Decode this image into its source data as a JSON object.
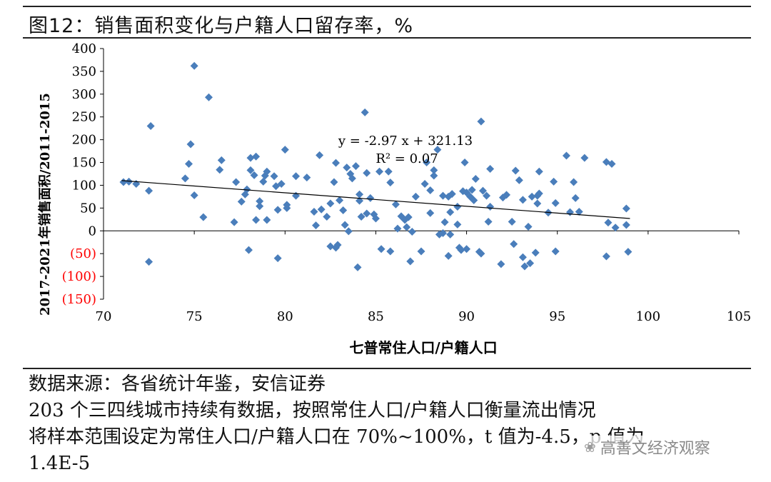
{
  "header": {
    "title": "图12：销售面积变化与户籍人口留存率，%"
  },
  "chart_data": {
    "type": "scatter",
    "xlabel": "七普常住人口/户籍人口",
    "ylabel": "2017-2021年销售面积/2011-2015",
    "xlim": [
      70,
      105
    ],
    "ylim": [
      -150,
      400
    ],
    "x_ticks": [
      "70",
      "75",
      "80",
      "85",
      "90",
      "95",
      "100",
      "105"
    ],
    "y_ticks": [
      "400",
      "350",
      "300",
      "250",
      "200",
      "150",
      "100",
      "50",
      "0",
      "(50)",
      "(100)",
      "(150)"
    ],
    "negative_tick_color": "#ff0000",
    "marker": "diamond",
    "marker_color": "#4a7ebb",
    "grid": false,
    "trendline": {
      "equation": "y = -2.97 x + 321.13",
      "r_squared": "R² = 0.07",
      "slope": -2.97,
      "intercept": 321.13,
      "x_start": 71,
      "x_end": 99
    },
    "points": [
      [
        71.1,
        107
      ],
      [
        71.4,
        108
      ],
      [
        71.8,
        103
      ],
      [
        72.5,
        88
      ],
      [
        72.6,
        230
      ],
      [
        72.5,
        -68
      ],
      [
        74.5,
        115
      ],
      [
        74.7,
        147
      ],
      [
        74.8,
        190
      ],
      [
        75.0,
        362
      ],
      [
        75.0,
        78
      ],
      [
        75.5,
        30
      ],
      [
        75.8,
        293
      ],
      [
        76.5,
        155
      ],
      [
        76.4,
        134
      ],
      [
        77.2,
        19
      ],
      [
        77.3,
        107
      ],
      [
        77.6,
        64
      ],
      [
        77.8,
        80
      ],
      [
        77.9,
        91
      ],
      [
        78.0,
        -42
      ],
      [
        78.1,
        160
      ],
      [
        78.1,
        133
      ],
      [
        78.3,
        122
      ],
      [
        78.4,
        163
      ],
      [
        78.4,
        24
      ],
      [
        78.6,
        65
      ],
      [
        78.6,
        54
      ],
      [
        78.8,
        108
      ],
      [
        78.9,
        121
      ],
      [
        79.0,
        130
      ],
      [
        79.0,
        24
      ],
      [
        79.4,
        120
      ],
      [
        79.5,
        98
      ],
      [
        79.6,
        46
      ],
      [
        79.6,
        -60
      ],
      [
        79.8,
        103
      ],
      [
        80.0,
        178
      ],
      [
        80.1,
        57
      ],
      [
        80.1,
        50
      ],
      [
        80.6,
        120
      ],
      [
        80.6,
        77
      ],
      [
        81.2,
        117
      ],
      [
        81.6,
        42
      ],
      [
        81.7,
        12
      ],
      [
        81.9,
        166
      ],
      [
        82.0,
        47
      ],
      [
        82.3,
        31
      ],
      [
        82.5,
        60
      ],
      [
        82.5,
        -34
      ],
      [
        82.7,
        107
      ],
      [
        82.8,
        149
      ],
      [
        82.8,
        -37
      ],
      [
        82.9,
        -31
      ],
      [
        83.0,
        67
      ],
      [
        83.2,
        45
      ],
      [
        83.3,
        13
      ],
      [
        83.4,
        139
      ],
      [
        83.5,
        -1
      ],
      [
        83.6,
        125
      ],
      [
        83.7,
        115
      ],
      [
        83.9,
        142
      ],
      [
        84.0,
        -80
      ],
      [
        84.1,
        80
      ],
      [
        84.1,
        66
      ],
      [
        84.2,
        31
      ],
      [
        84.4,
        260
      ],
      [
        84.5,
        127
      ],
      [
        84.5,
        38
      ],
      [
        84.7,
        72
      ],
      [
        84.9,
        36
      ],
      [
        85.0,
        27
      ],
      [
        85.2,
        130
      ],
      [
        85.3,
        -40
      ],
      [
        85.7,
        130
      ],
      [
        85.8,
        106
      ],
      [
        85.8,
        -45
      ],
      [
        86.1,
        58
      ],
      [
        86.2,
        5
      ],
      [
        86.4,
        32
      ],
      [
        86.6,
        24
      ],
      [
        86.7,
        8
      ],
      [
        86.8,
        30
      ],
      [
        86.9,
        -67
      ],
      [
        87.0,
        -2
      ],
      [
        87.2,
        75
      ],
      [
        87.5,
        -45
      ],
      [
        87.7,
        103
      ],
      [
        87.8,
        150
      ],
      [
        88.0,
        39
      ],
      [
        88.0,
        89
      ],
      [
        88.2,
        133
      ],
      [
        88.2,
        121
      ],
      [
        88.4,
        178
      ],
      [
        88.5,
        -8
      ],
      [
        88.7,
        -5
      ],
      [
        88.7,
        77
      ],
      [
        88.8,
        19
      ],
      [
        89.0,
        -55
      ],
      [
        89.0,
        75
      ],
      [
        89.1,
        41
      ],
      [
        89.1,
        -8
      ],
      [
        89.2,
        81
      ],
      [
        89.5,
        53
      ],
      [
        89.5,
        14
      ],
      [
        89.6,
        -37
      ],
      [
        89.7,
        -42
      ],
      [
        89.8,
        87
      ],
      [
        89.9,
        150
      ],
      [
        90.0,
        -40
      ],
      [
        90.0,
        84
      ],
      [
        90.2,
        75
      ],
      [
        90.3,
        90
      ],
      [
        90.4,
        67
      ],
      [
        90.5,
        114
      ],
      [
        90.7,
        -46
      ],
      [
        90.8,
        -50
      ],
      [
        90.8,
        240
      ],
      [
        90.9,
        88
      ],
      [
        91.1,
        77
      ],
      [
        91.2,
        20
      ],
      [
        91.3,
        136
      ],
      [
        91.3,
        53
      ],
      [
        91.9,
        -73
      ],
      [
        92.0,
        73
      ],
      [
        92.2,
        79
      ],
      [
        92.5,
        20
      ],
      [
        92.6,
        -29
      ],
      [
        92.7,
        132
      ],
      [
        92.9,
        111
      ],
      [
        93.1,
        68
      ],
      [
        93.1,
        -58
      ],
      [
        93.2,
        -78
      ],
      [
        93.4,
        9
      ],
      [
        93.5,
        -71
      ],
      [
        93.6,
        75
      ],
      [
        93.8,
        -48
      ],
      [
        93.9,
        60
      ],
      [
        93.9,
        77
      ],
      [
        94.0,
        130
      ],
      [
        94.0,
        82
      ],
      [
        94.5,
        40
      ],
      [
        94.8,
        108
      ],
      [
        94.9,
        61
      ],
      [
        94.9,
        -45
      ],
      [
        95.5,
        165
      ],
      [
        95.7,
        41
      ],
      [
        95.9,
        107
      ],
      [
        96.0,
        72
      ],
      [
        96.2,
        42
      ],
      [
        96.5,
        160
      ],
      [
        97.7,
        151
      ],
      [
        97.7,
        -56
      ],
      [
        97.8,
        18
      ],
      [
        98.0,
        147
      ],
      [
        98.2,
        7
      ],
      [
        98.8,
        49
      ],
      [
        98.8,
        13
      ],
      [
        98.9,
        -46
      ]
    ]
  },
  "notes": {
    "source": "数据来源：各省统计年鉴，安信证券",
    "line1": "203 个三四线城市持续有数据，按照常住人口/户籍人口衡量流出情况",
    "line2": "将样本范围设定为常住人口/户籍人口在 70%~100%，t 值为-4.5，p 值为",
    "line3": "1.4E-5"
  },
  "watermark": {
    "icon": "wechat-icon",
    "glyph": "❀",
    "text": "高善文经济观察"
  }
}
